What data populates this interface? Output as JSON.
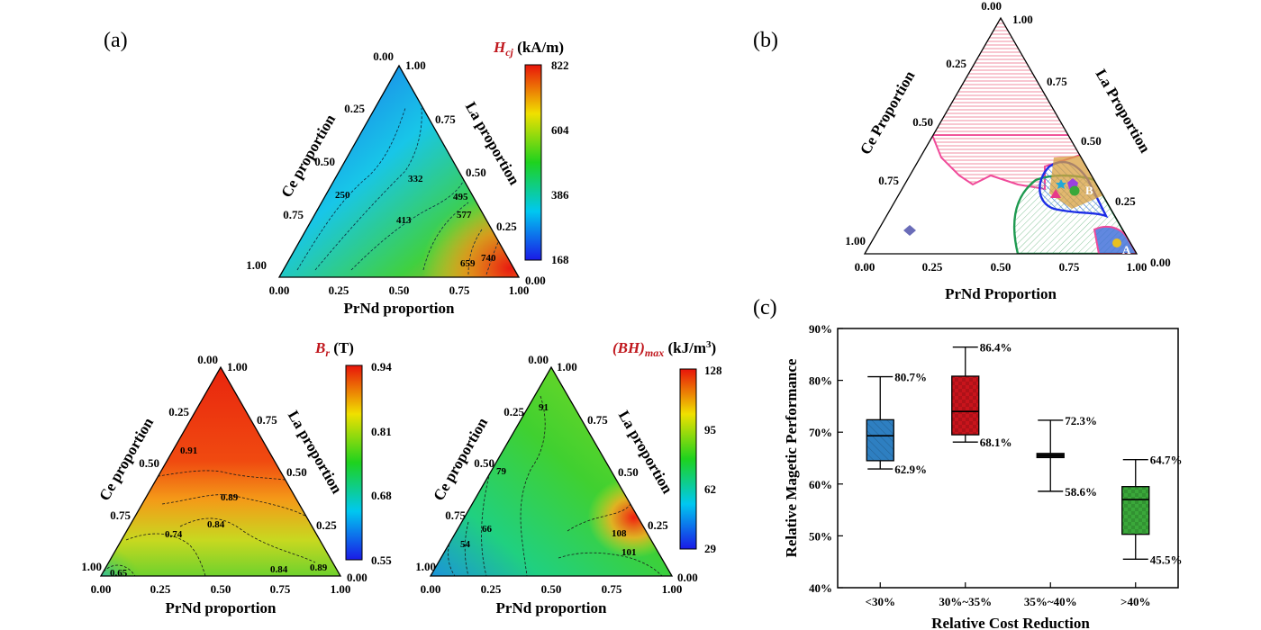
{
  "panel_labels": {
    "a": "(a)",
    "b": "(b)",
    "c": "(c)"
  },
  "colors": {
    "red": "#c0171d",
    "box_lt30": "#2e7fc1",
    "box_30_35": "#c8141c",
    "box_35_40": "#111111",
    "box_gt40": "#3aa83a",
    "region_pink": "#f26a9a",
    "region_green": "#2a9a55",
    "region_blue": "#1c2ee6",
    "region_orange": "#d89a3a",
    "marker_diamond": "#6a6cb8"
  },
  "chart_data": [
    {
      "type": "heatmap",
      "panel": "(a) top",
      "title_main": "H",
      "title_sub": "cj",
      "title_unit": " (kA/m)",
      "colorbar_ticks": [
        "822",
        "604",
        "386",
        "168"
      ],
      "colorbar_range": [
        168,
        822
      ],
      "axis_bottom_title": "PrNd proportion",
      "axis_left_title": "Ce proportion",
      "axis_right_title": "La proportion",
      "ticks_bottom": [
        "0.00",
        "0.25",
        "0.50",
        "0.75",
        "1.00"
      ],
      "ticks_left": [
        "1.00",
        "0.75",
        "0.50",
        "0.25",
        "0.00"
      ],
      "ticks_right": [
        "1.00",
        "0.75",
        "0.50",
        "0.25",
        "0.00"
      ],
      "contour_labels": [
        "250",
        "332",
        "413",
        "495",
        "577",
        "659",
        "740"
      ]
    },
    {
      "type": "heatmap",
      "panel": "(a) bottom-left",
      "title_main": "B",
      "title_sub": "r",
      "title_unit": " (T)",
      "colorbar_ticks": [
        "0.94",
        "0.81",
        "0.68",
        "0.55"
      ],
      "colorbar_range": [
        0.55,
        0.94
      ],
      "axis_bottom_title": "PrNd proportion",
      "axis_left_title": "Ce proportion",
      "axis_right_title": "La proportion",
      "ticks_bottom": [
        "0.00",
        "0.25",
        "0.50",
        "0.75",
        "1.00"
      ],
      "ticks_left": [
        "1.00",
        "0.75",
        "0.50",
        "0.25",
        "0.00"
      ],
      "ticks_right": [
        "1.00",
        "0.75",
        "0.50",
        "0.25",
        "0.00"
      ],
      "contour_labels": [
        "0.91",
        "0.89",
        "0.84",
        "0.74",
        "0.65",
        "0.84",
        "0.89"
      ]
    },
    {
      "type": "heatmap",
      "panel": "(a) bottom-right",
      "title_main": "(BH)",
      "title_sub": "max",
      "title_unit": " (kJ/m",
      "title_sup": "3",
      "title_end": ")",
      "colorbar_ticks": [
        "128",
        "95",
        "62",
        "29"
      ],
      "colorbar_range": [
        29,
        128
      ],
      "axis_bottom_title": "PrNd proportion",
      "axis_left_title": "Ce proportion",
      "axis_right_title": "La proportion",
      "ticks_bottom": [
        "0.00",
        "0.25",
        "0.50",
        "0.75",
        "1.00"
      ],
      "ticks_left": [
        "1.00",
        "0.75",
        "0.50",
        "0.25",
        "0.00"
      ],
      "ticks_right": [
        "1.00",
        "0.75",
        "0.50",
        "0.25",
        "0.00"
      ],
      "contour_labels": [
        "91",
        "79",
        "66",
        "54",
        "108",
        "101"
      ]
    },
    {
      "type": "scatter",
      "panel": "(b)",
      "axis_bottom_title": "PrNd Proportion",
      "axis_left_title": "Ce Proportion",
      "axis_right_title": "La Proportion",
      "ticks_bottom": [
        "0.00",
        "0.25",
        "0.50",
        "0.75",
        "1.00"
      ],
      "ticks_left": [
        "1.00",
        "0.75",
        "0.50",
        "0.25",
        "0.00"
      ],
      "ticks_right": [
        "1.00",
        "0.75",
        "0.50",
        "0.25",
        "0.00"
      ],
      "region_labels": [
        "B",
        "A"
      ]
    },
    {
      "type": "box",
      "panel": "(c)",
      "xlabel": "Relative Cost Reduction",
      "ylabel": "Relative Magetic Performance",
      "ylim": [
        40,
        90
      ],
      "yticks": [
        "40%",
        "50%",
        "60%",
        "70%",
        "80%",
        "90%"
      ],
      "categories": [
        "<30%",
        "30%~35%",
        "35%~40%",
        ">40%"
      ],
      "boxes": [
        {
          "q1": 64.5,
          "median": 69.3,
          "q3": 72.4,
          "max": 80.7,
          "min": 62.9,
          "max_label": "80.7%",
          "min_label": "62.9%"
        },
        {
          "q1": 69.5,
          "median": 74.0,
          "q3": 80.8,
          "max": 86.4,
          "min": 68.1,
          "max_label": "86.4%",
          "min_label": "68.1%"
        },
        {
          "q1": 65.1,
          "median": 65.5,
          "q3": 65.9,
          "max": 72.3,
          "min": 58.6,
          "max_label": "72.3%",
          "min_label": "58.6%"
        },
        {
          "q1": 50.3,
          "median": 57.0,
          "q3": 59.5,
          "max": 64.7,
          "min": 45.5,
          "max_label": "64.7%",
          "min_label": "45.5%"
        }
      ]
    }
  ]
}
